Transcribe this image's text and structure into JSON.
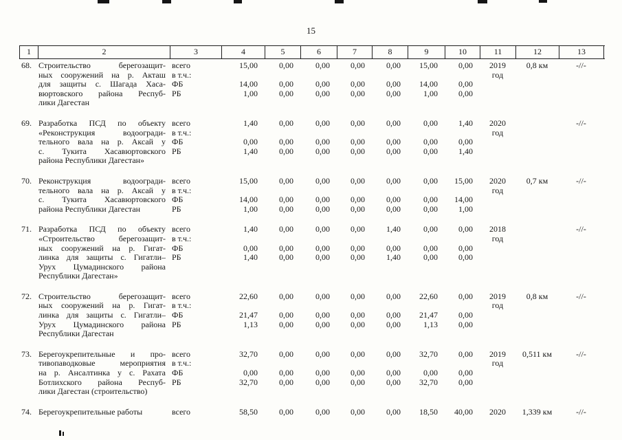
{
  "page": {
    "number": "15"
  },
  "table": {
    "header": [
      "1",
      "2",
      "3",
      "4",
      "5",
      "6",
      "7",
      "8",
      "9",
      "10",
      "11",
      "12",
      "13"
    ],
    "rows": [
      {
        "num": "68.",
        "name_lines": [
          "Строительство берегозащит-",
          "ных сооружений на р. Акташ",
          "для защиты с. Шагада Хаса-",
          "вюртовского района Респуб-",
          "лики Дагестан"
        ],
        "fin_labels": [
          "всего",
          "в т.ч.:",
          "ФБ",
          "РБ"
        ],
        "vsego": [
          "15,00",
          "0,00",
          "0,00",
          "0,00",
          "0,00",
          "15,00",
          "0,00"
        ],
        "fb": [
          "14,00",
          "0,00",
          "0,00",
          "0,00",
          "0,00",
          "14,00",
          "0,00"
        ],
        "rb": [
          "1,00",
          "0,00",
          "0,00",
          "0,00",
          "0,00",
          "1,00",
          "0,00"
        ],
        "year_lines": [
          "2019",
          "год"
        ],
        "length": "0,8 км",
        "note": "-//-"
      },
      {
        "num": "69.",
        "name_lines": [
          "Разработка ПСД по объекту",
          "«Реконструкция водоогради-",
          "тельного вала на р. Аксай у",
          "с. Тукита Хасавюртовского",
          "района Республики Дагестан»"
        ],
        "fin_labels": [
          "всего",
          "в т.ч.:",
          "ФБ",
          "РБ"
        ],
        "vsego": [
          "1,40",
          "0,00",
          "0,00",
          "0,00",
          "0,00",
          "0,00",
          "1,40"
        ],
        "fb": [
          "0,00",
          "0,00",
          "0,00",
          "0,00",
          "0,00",
          "0,00",
          "0,00"
        ],
        "rb": [
          "1,40",
          "0,00",
          "0,00",
          "0,00",
          "0,00",
          "0,00",
          "1,40"
        ],
        "year_lines": [
          "2020",
          "год"
        ],
        "length": "",
        "note": "-//-"
      },
      {
        "num": "70.",
        "name_lines": [
          "Реконструкция водоогради-",
          "тельного вала на р. Аксай у",
          "с. Тукита Хасавюртовского",
          "района Республики Дагестан"
        ],
        "fin_labels": [
          "всего",
          "в т.ч.:",
          "ФБ",
          "РБ"
        ],
        "vsego": [
          "15,00",
          "0,00",
          "0,00",
          "0,00",
          "0,00",
          "0,00",
          "15,00"
        ],
        "fb": [
          "14,00",
          "0,00",
          "0,00",
          "0,00",
          "0,00",
          "0,00",
          "14,00"
        ],
        "rb": [
          "1,00",
          "0,00",
          "0,00",
          "0,00",
          "0,00",
          "0,00",
          "1,00"
        ],
        "year_lines": [
          "2020",
          "год"
        ],
        "length": "0,7 км",
        "note": "-//-"
      },
      {
        "num": "71.",
        "name_lines": [
          "Разработка ПСД по объекту",
          "«Строительство берегозащит-",
          "ных сооружений на р. Гигат-",
          "линка для защиты с. Гигатли–",
          "Урух Цумадинского района",
          "Республики Дагестан»"
        ],
        "fin_labels": [
          "всего",
          "в т.ч.:",
          "ФБ",
          "РБ"
        ],
        "vsego": [
          "1,40",
          "0,00",
          "0,00",
          "0,00",
          "1,40",
          "0,00",
          "0,00"
        ],
        "fb": [
          "0,00",
          "0,00",
          "0,00",
          "0,00",
          "0,00",
          "0,00",
          "0,00"
        ],
        "rb": [
          "1,40",
          "0,00",
          "0,00",
          "0,00",
          "1,40",
          "0,00",
          "0,00"
        ],
        "year_lines": [
          "2018",
          "год"
        ],
        "length": "",
        "note": "-//-"
      },
      {
        "num": "72.",
        "name_lines": [
          "Строительство берегозащит-",
          "ных сооружений на р. Гигат-",
          "линка для защиты с. Гигатли–",
          "Урух Цумадинского района",
          "Республики Дагестан"
        ],
        "fin_labels": [
          "всего",
          "в т.ч.:",
          "ФБ",
          "РБ"
        ],
        "vsego": [
          "22,60",
          "0,00",
          "0,00",
          "0,00",
          "0,00",
          "22,60",
          "0,00"
        ],
        "fb": [
          "21,47",
          "0,00",
          "0,00",
          "0,00",
          "0,00",
          "21,47",
          "0,00"
        ],
        "rb": [
          "1,13",
          "0,00",
          "0,00",
          "0,00",
          "0,00",
          "1,13",
          "0,00"
        ],
        "year_lines": [
          "2019",
          "год"
        ],
        "length": "0,8 км",
        "note": "-//-"
      },
      {
        "num": "73.",
        "name_lines": [
          "Берегоукрепительные и про-",
          "тивопаводковые мероприятия",
          "на р. Ансалтинка у с. Рахата",
          "Ботлихского района Респуб-",
          "лики Дагестан (строительство)"
        ],
        "fin_labels": [
          "всего",
          "в т.ч.:",
          "ФБ",
          "РБ"
        ],
        "vsego": [
          "32,70",
          "0,00",
          "0,00",
          "0,00",
          "0,00",
          "32,70",
          "0,00"
        ],
        "fb": [
          "0,00",
          "0,00",
          "0,00",
          "0,00",
          "0,00",
          "0,00",
          "0,00"
        ],
        "rb": [
          "32,70",
          "0,00",
          "0,00",
          "0,00",
          "0,00",
          "32,70",
          "0,00"
        ],
        "year_lines": [
          "2019",
          "год"
        ],
        "length": "0,511 км",
        "note": "-//-"
      },
      {
        "num": "74.",
        "name_lines": [
          "Берегоукрепительные работы"
        ],
        "fin_labels": [
          "всего"
        ],
        "vsego": [
          "58,50",
          "0,00",
          "0,00",
          "0,00",
          "0,00",
          "18,50",
          "40,00"
        ],
        "year_lines": [
          "2020"
        ],
        "length": "1,339 км",
        "note": "-//-"
      }
    ]
  }
}
